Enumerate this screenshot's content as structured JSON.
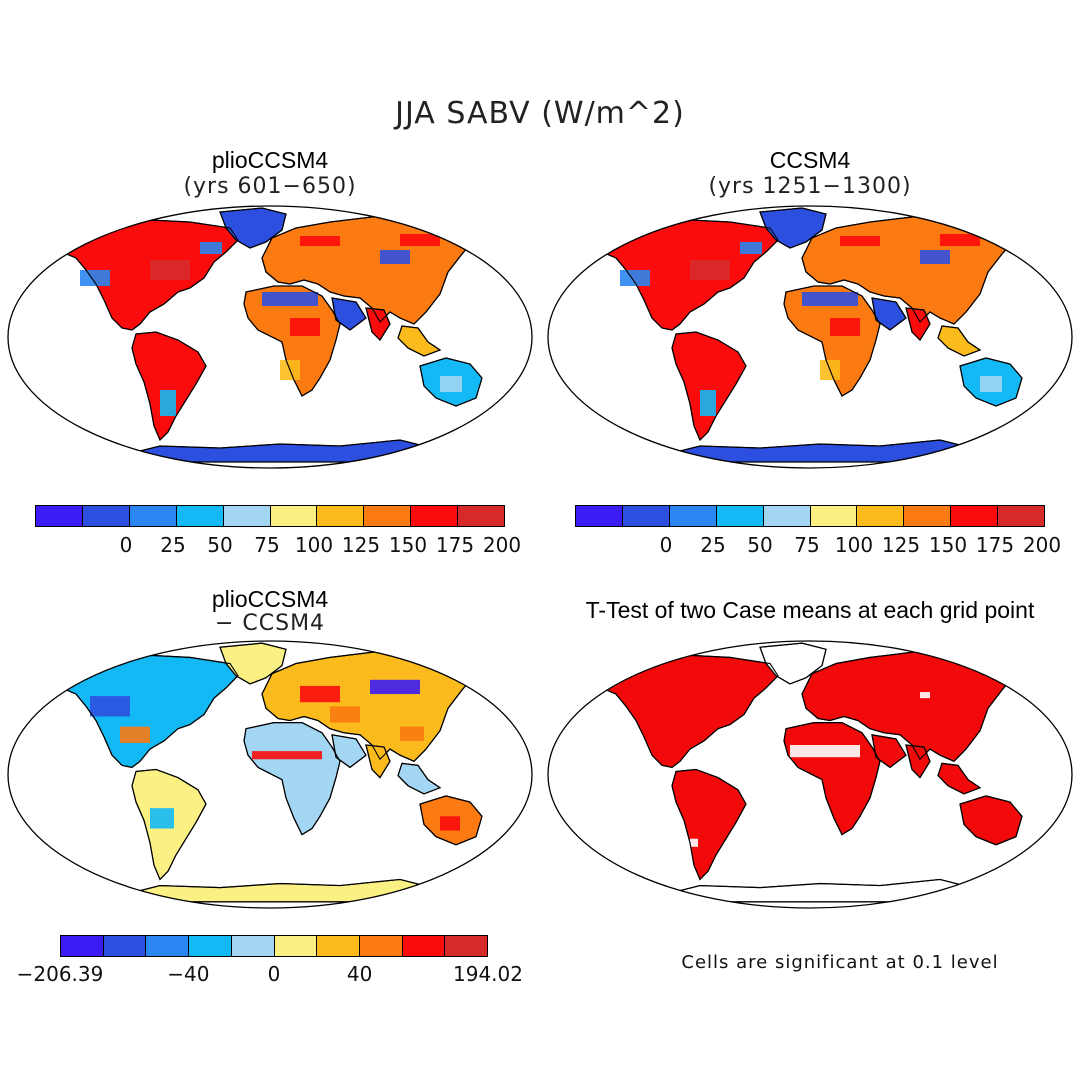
{
  "figure": {
    "title": "JJA SABV (W/m^2)"
  },
  "panels": [
    {
      "id": "plio",
      "title": "plioCCSM4",
      "subtitle": "(yrs 601−650)",
      "fill": "mean"
    },
    {
      "id": "ccsm4",
      "title": "CCSM4",
      "subtitle": "(yrs 1251−1300)",
      "fill": "mean"
    },
    {
      "id": "diff",
      "title": "plioCCSM4",
      "subtitle": "− CCSM4",
      "fill": "diff"
    },
    {
      "id": "ttest",
      "title": "T-Test of two Case means at each grid point",
      "subtitle": "",
      "fill": "sig",
      "note": "Cells are significant at 0.1 level"
    }
  ],
  "colorbars": {
    "palette": [
      "#3b1cf5",
      "#2d4fe0",
      "#2a86f0",
      "#13b9f5",
      "#a2d6f2",
      "#faf084",
      "#fbbb1c",
      "#fb7a12",
      "#fb0c0c",
      "#d62a2a"
    ],
    "mean_ticks": [
      "0",
      "25",
      "50",
      "75",
      "100",
      "125",
      "150",
      "175",
      "200"
    ],
    "diff_ticks": [
      "−206.39",
      "−40",
      "0",
      "40",
      "194.02"
    ]
  },
  "significance_color": "#f20a0a",
  "projection": "Robinson (global)",
  "variable": "SABV",
  "season": "JJA"
}
